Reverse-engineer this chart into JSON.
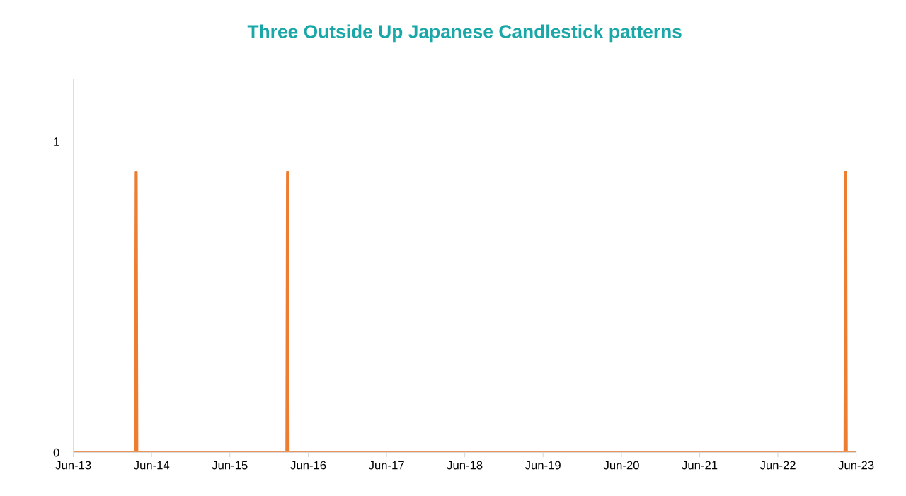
{
  "chart_data": {
    "type": "line",
    "title": "Three Outside Up Japanese Candlestick patterns",
    "x": [
      "2013-06-01",
      "2014-03-18",
      "2014-03-21",
      "2014-03-24",
      "2016-02-22",
      "2016-02-25",
      "2016-02-28",
      "2023-04-10",
      "2023-04-13",
      "2023-04-16",
      "2023-06-01"
    ],
    "series": [
      {
        "color": "#ed7d31",
        "values": [
          0,
          0,
          0.9,
          0,
          0,
          0.9,
          0,
          0,
          0.9,
          0,
          0
        ]
      }
    ],
    "xlim": [
      "2013-06-01",
      "2023-06-01"
    ],
    "xticks": [
      {
        "value": "2013-06-01",
        "label": "Jun-13"
      },
      {
        "value": "2014-06-01",
        "label": "Jun-14"
      },
      {
        "value": "2015-06-01",
        "label": "Jun-15"
      },
      {
        "value": "2016-06-01",
        "label": "Jun-16"
      },
      {
        "value": "2017-06-01",
        "label": "Jun-17"
      },
      {
        "value": "2018-06-01",
        "label": "Jun-18"
      },
      {
        "value": "2019-06-01",
        "label": "Jun-19"
      },
      {
        "value": "2020-06-01",
        "label": "Jun-20"
      },
      {
        "value": "2021-06-01",
        "label": "Jun-21"
      },
      {
        "value": "2022-06-01",
        "label": "Jun-22"
      },
      {
        "value": "2023-06-01",
        "label": "Jun-23"
      }
    ],
    "ylim": [
      0,
      1.2
    ],
    "yticks": [
      0,
      1
    ],
    "grid": false
  }
}
